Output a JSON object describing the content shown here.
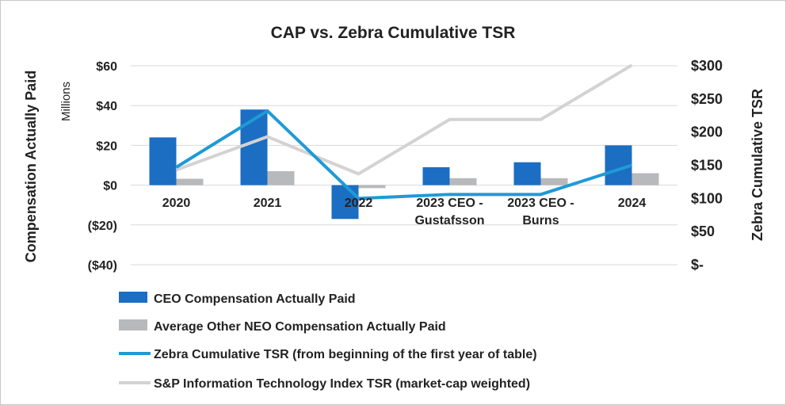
{
  "chart_data": {
    "type": "bar",
    "title": "CAP vs. Zebra Cumulative TSR",
    "categories": [
      [
        "2020"
      ],
      [
        "2021"
      ],
      [
        "2022"
      ],
      [
        "2023 CEO -",
        "Gustafsson"
      ],
      [
        "2023 CEO -",
        "Burns"
      ],
      [
        "2024"
      ]
    ],
    "left_axis": {
      "label": "Compensation Actually Paid",
      "unit": "Millions",
      "ticks": [
        "$60",
        "$40",
        "$20",
        "$0",
        "($20)",
        "($40)"
      ],
      "tick_values": [
        60,
        40,
        20,
        0,
        -20,
        -40
      ],
      "ylim": [
        -40,
        60
      ]
    },
    "right_axis": {
      "label": "Zebra Cumulative TSR",
      "ticks": [
        "$300",
        "$250",
        "$200",
        "$150",
        "$100",
        "$50",
        "$-"
      ],
      "tick_values": [
        300,
        250,
        200,
        150,
        100,
        50,
        0
      ],
      "ylim": [
        0,
        300
      ]
    },
    "series": [
      {
        "name": "CEO Compensation Actually Paid",
        "kind": "bar",
        "axis": "left",
        "color": "#1b6ec2",
        "values": [
          24,
          38,
          -17,
          9,
          11.5,
          20
        ]
      },
      {
        "name": "Average Other NEO Compensation Actually Paid",
        "kind": "bar",
        "axis": "left",
        "color": "#b8b9bb",
        "values": [
          3.2,
          7,
          -1.5,
          3.5,
          3.5,
          6
        ]
      },
      {
        "name": "Zebra Cumulative TSR (from beginning of the first year of table)",
        "kind": "line",
        "axis": "right",
        "color": "#1f9ad6",
        "values": [
          147,
          232,
          100,
          106,
          106,
          150
        ]
      },
      {
        "name": "S&P Information Technology Index TSR (market-cap weighted)",
        "kind": "line",
        "axis": "right",
        "color": "#d3d3d3",
        "values": [
          143,
          193,
          137,
          219,
          219,
          301
        ]
      }
    ]
  }
}
